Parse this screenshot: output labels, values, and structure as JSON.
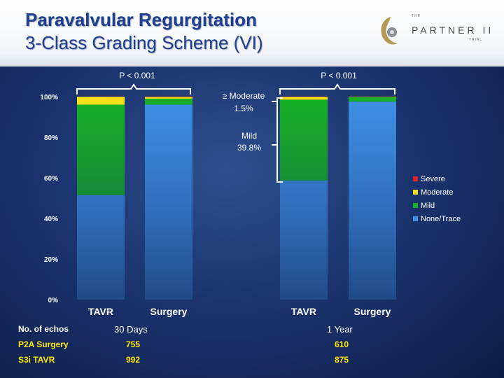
{
  "header": {
    "title": "Paravalvular Regurgitation",
    "subtitle": "3-Class Grading Scheme (VI)",
    "logo": {
      "the": "THE",
      "main": "PARTNER II",
      "trial": "TRIAL"
    }
  },
  "chart_data": {
    "type": "bar",
    "stacked": true,
    "groups": [
      "30 Days",
      "1 Year"
    ],
    "categories": [
      "TAVR",
      "Surgery",
      "TAVR",
      "Surgery"
    ],
    "y_ticks": [
      "0%",
      "20%",
      "40%",
      "60%",
      "80%",
      "100%"
    ],
    "ylim": [
      0,
      100
    ],
    "legend_position": "right",
    "series": [
      {
        "name": "None/Trace",
        "color": "#3d8fe6",
        "values": [
          51.5,
          96.0,
          58.7,
          97.5
        ]
      },
      {
        "name": "Mild",
        "color": "#17b024",
        "values": [
          44.5,
          3.0,
          39.8,
          2.2
        ]
      },
      {
        "name": "Moderate",
        "color": "#f7e21a",
        "values": [
          3.9,
          0.8,
          1.3,
          0.2
        ]
      },
      {
        "name": "Severe",
        "color": "#e02424",
        "values": [
          0.1,
          0.2,
          0.2,
          0.1
        ]
      }
    ],
    "annotations": {
      "p1": "P < 0.001",
      "p2": "P < 0.001",
      "moderate_label": "≥ Moderate",
      "moderate_value": "1.5%",
      "mild_label": "Mild",
      "mild_value": "39.8%"
    }
  },
  "footer": {
    "echos_label": "No. of echos",
    "col1_header": "30 Days",
    "col2_header": "1 Year",
    "rows": [
      {
        "label": "P2A Surgery",
        "v1": "755",
        "v2": "610"
      },
      {
        "label": "S3i TAVR",
        "v1": "992",
        "v2": "875"
      }
    ]
  }
}
